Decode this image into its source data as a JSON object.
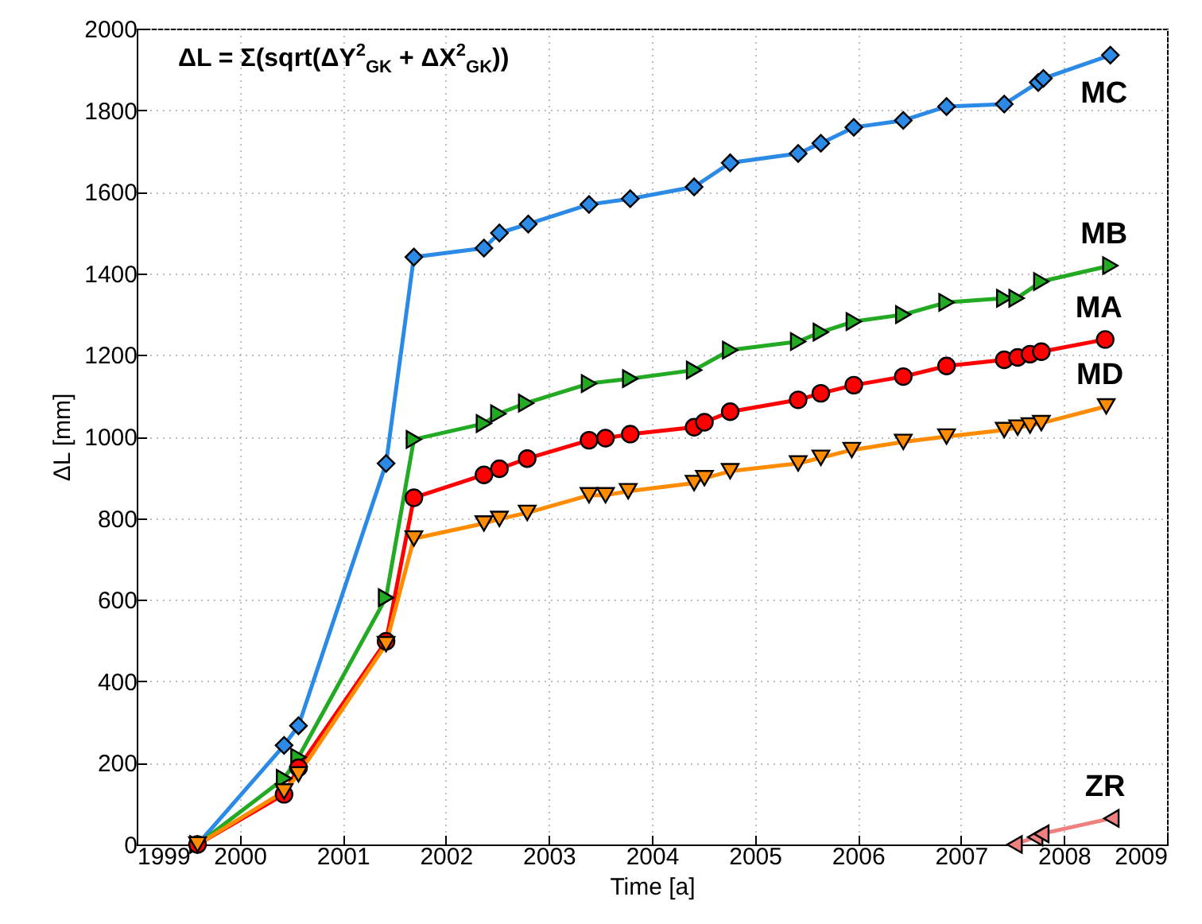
{
  "chart_data": {
    "type": "line",
    "xlabel": "Time [a]",
    "ylabel": "ΔL [mm]",
    "annotations": [
      "ΔL = Σ(sqrt(ΔY$^{2}$$_{GK}$ + ΔX$^{2}$$_{GK}$))"
    ],
    "xlim": [
      1999,
      2009
    ],
    "xticks": [
      1999,
      2000,
      2001,
      2002,
      2003,
      2004,
      2005,
      2006,
      2007,
      2008,
      2009
    ],
    "ylim": [
      0,
      2000
    ],
    "yticks": [
      0,
      200,
      400,
      600,
      800,
      1000,
      1200,
      1400,
      1600,
      1800,
      2000
    ],
    "grid": true,
    "line_style": "solid",
    "series": [
      {
        "name": "MC",
        "color": "#2b8ae6",
        "marker": "diamond",
        "x": [
          1999.59,
          2000.43,
          2000.57,
          2001.42,
          2001.69,
          2002.37,
          2002.52,
          2002.8,
          2003.39,
          2003.79,
          2004.41,
          2004.76,
          2005.42,
          2005.64,
          2005.96,
          2006.44,
          2006.86,
          2007.42,
          2007.75,
          2007.8,
          2008.45
        ],
        "values": [
          0,
          243,
          291,
          934,
          1440,
          1462,
          1499,
          1521,
          1569,
          1583,
          1612,
          1671,
          1694,
          1719,
          1758,
          1775,
          1809,
          1815,
          1868,
          1878,
          1935
        ]
      },
      {
        "name": "MB",
        "color": "#22aa22",
        "marker": "triangle-right",
        "x": [
          1999.59,
          2000.43,
          2000.57,
          2001.42,
          2001.69,
          2002.37,
          2002.51,
          2002.78,
          2003.39,
          2003.79,
          2004.41,
          2004.76,
          2005.42,
          2005.64,
          2005.96,
          2006.44,
          2006.86,
          2007.42,
          2007.54,
          2007.78,
          2008.45
        ],
        "values": [
          0,
          162,
          214,
          605,
          993,
          1032,
          1056,
          1082,
          1130,
          1142,
          1163,
          1212,
          1233,
          1256,
          1282,
          1299,
          1329,
          1339,
          1339,
          1380,
          1419
        ]
      },
      {
        "name": "MA",
        "color": "#ff0000",
        "marker": "circle",
        "x": [
          1999.59,
          2000.43,
          2000.57,
          2001.42,
          2001.69,
          2002.37,
          2002.52,
          2002.79,
          2003.39,
          2003.55,
          2003.79,
          2004.41,
          2004.51,
          2004.76,
          2005.42,
          2005.64,
          2005.96,
          2006.44,
          2006.86,
          2007.42,
          2007.55,
          2007.67,
          2007.78,
          2008.4
        ],
        "values": [
          0,
          123,
          188,
          498,
          850,
          906,
          921,
          946,
          991,
          996,
          1006,
          1023,
          1035,
          1061,
          1090,
          1106,
          1126,
          1147,
          1173,
          1188,
          1194,
          1202,
          1208,
          1238
        ]
      },
      {
        "name": "MD",
        "color": "#ff8c00",
        "marker": "triangle-down",
        "x": [
          1999.59,
          2000.43,
          2000.57,
          2001.42,
          2001.69,
          2002.37,
          2002.52,
          2002.79,
          2003.39,
          2003.55,
          2003.77,
          2004.41,
          2004.51,
          2004.76,
          2005.42,
          2005.64,
          2005.94,
          2006.44,
          2006.86,
          2007.42,
          2007.55,
          2007.67,
          2007.78,
          2008.41
        ],
        "values": [
          0,
          130,
          172,
          491,
          750,
          787,
          798,
          813,
          856,
          856,
          866,
          886,
          898,
          915,
          934,
          948,
          967,
          987,
          1000,
          1016,
          1022,
          1027,
          1033,
          1074
        ]
      },
      {
        "name": "ZR",
        "color": "#f08080",
        "marker": "triangle-left",
        "x": [
          2007.52,
          2007.72,
          2007.78,
          2008.46
        ],
        "values": [
          0,
          18,
          26,
          64
        ]
      }
    ]
  }
}
